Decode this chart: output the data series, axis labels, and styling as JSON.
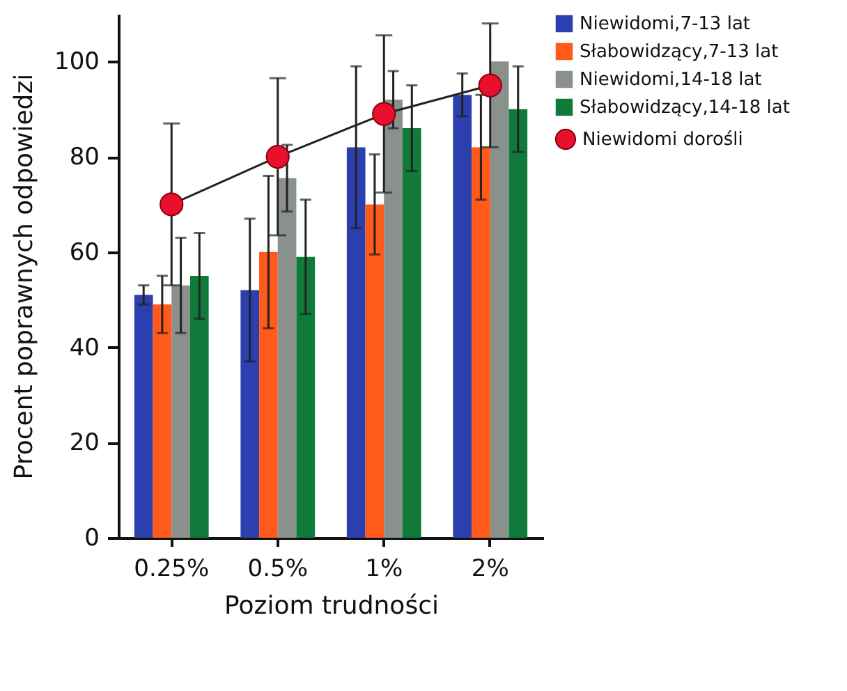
{
  "chart_data": {
    "type": "bar",
    "xlabel": "Poziom trudności",
    "ylabel": "Procent poprawnych odpowiedzi",
    "categories": [
      "0.25%",
      "0.5%",
      "1%",
      "2%"
    ],
    "series": [
      {
        "name": "Niewidomi,7-13 lat",
        "color": "#2b3fae",
        "values": [
          51,
          52,
          82,
          93
        ],
        "errors": [
          2,
          15,
          17,
          4.5
        ]
      },
      {
        "name": "Słabowidzący,7-13 lat",
        "color": "#ff5a1a",
        "values": [
          49,
          60,
          70,
          82
        ],
        "errors": [
          6,
          16,
          10.5,
          11
        ]
      },
      {
        "name": "Niewidomi,14-18 lat",
        "color": "#8a918c",
        "values": [
          53,
          75.5,
          92,
          100
        ],
        "errors": [
          10,
          7,
          6,
          null
        ]
      },
      {
        "name": "Słabowidzący,14-18 lat",
        "color": "#0f7a3a",
        "values": [
          55,
          59,
          86,
          90
        ],
        "errors": [
          9,
          12,
          9,
          9
        ]
      },
      {
        "name": "Niewidomi dorośli",
        "type": "line",
        "color": "#e8112d",
        "values": [
          70,
          80,
          89,
          95
        ],
        "errors": [
          17,
          16.5,
          16.5,
          13
        ],
        "marker": "circle",
        "line_style": "solid"
      }
    ],
    "ylim": [
      0,
      110
    ],
    "yticks": [
      0,
      20,
      40,
      60,
      80,
      100
    ],
    "grid": false,
    "legend": "right"
  }
}
